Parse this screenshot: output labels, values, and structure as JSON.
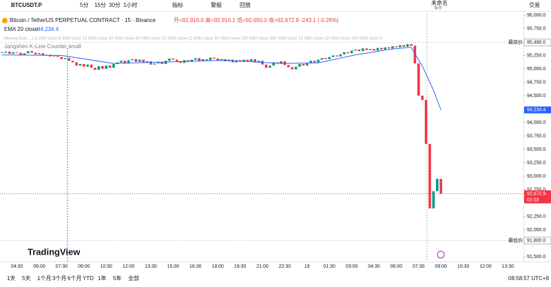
{
  "toolbar": {
    "symbol": "BTCUSDT.P",
    "intervals": [
      "5分",
      "15分",
      "30分",
      "1小时"
    ],
    "indicators": "指标",
    "alert": "警报",
    "replay": "回放",
    "layout_name": "未命名",
    "layout_status": "保存",
    "trade": "交易"
  },
  "legend": {
    "title": "Bitcoin / TetherUS PERPETUAL CONTRACT · 15 · Binance",
    "ohlc": "开=92,916.0 高=92,916.1 低=92,650.0 收=92,672.9 -243.1 (-0.26%)",
    "ema_name": "EMA 20 close",
    "ema_value": "94,234.4",
    "moving_avg": "Moving Aver... 1.5 LMA close 8 SMA close 13 SMA close 20 SMA close 60 SMA close 10 SMA close 21 EMA close 50 SMA close 200 SMA close 300 SMA close 10 SMA close 10 SMA close 100 SMA close 6",
    "counter": "Jangshen K-Line Counter small"
  },
  "chart": {
    "ylim": [
      96282,
      91410
    ],
    "price_ticks": [
      {
        "value": 96000,
        "label": "96,000.0"
      },
      {
        "value": 95750,
        "label": "95,750.0"
      },
      {
        "value": 95250,
        "label": "95,250.0"
      },
      {
        "value": 95000,
        "label": "95,000.0"
      },
      {
        "value": 94750,
        "label": "94,750.0"
      },
      {
        "value": 94500,
        "label": "94,500.0"
      },
      {
        "value": 94000,
        "label": "94,000.0"
      },
      {
        "value": 93750,
        "label": "93,750.0"
      },
      {
        "value": 93500,
        "label": "93,500.0"
      },
      {
        "value": 93250,
        "label": "93,250.0"
      },
      {
        "value": 93000,
        "label": "93,000.0"
      },
      {
        "value": 92750,
        "label": "92,750.0"
      },
      {
        "value": 92250,
        "label": "92,250.0"
      },
      {
        "value": 92000,
        "label": "92,000.0"
      },
      {
        "value": 91500,
        "label": "91,500.0"
      }
    ],
    "high_marker": {
      "name": "最高价",
      "value": 95490,
      "label": "95,490.0"
    },
    "low_marker": {
      "name": "最低价",
      "value": 91800,
      "label": "91,800.0"
    },
    "ema_marker": {
      "value": 94234.4,
      "label": "94,234.4"
    },
    "last_price": {
      "value": 92672.9,
      "label": "92,672.9",
      "countdown": "01:03"
    },
    "time_labels": [
      "04:30",
      "06:00",
      "07:30",
      "09:00",
      "10:30",
      "12:00",
      "13:30",
      "15:00",
      "16:30",
      "18:00",
      "19:30",
      "21:00",
      "22:30",
      "19",
      "01:30",
      "03:00",
      "04:30",
      "06:00",
      "07:30",
      "09:00",
      "10:30",
      "12:00",
      "13:30"
    ],
    "closes": [
      95300,
      95320,
      95280,
      95310,
      95300,
      95260,
      95290,
      95330,
      95300,
      95270,
      95290,
      95250,
      95260,
      95230,
      95240,
      95220,
      95180,
      95200,
      95150,
      95120,
      95060,
      95090,
      95040,
      95080,
      95020,
      94980,
      95050,
      95000,
      95060,
      95020,
      95090,
      95120,
      95150,
      95100,
      95160,
      95180,
      95130,
      95170,
      95110,
      95140,
      95080,
      95100,
      95130,
      95090,
      95150,
      95190,
      95170,
      95140,
      95110,
      95160,
      95130,
      95170,
      95200,
      95140,
      95180,
      95160,
      95210,
      95190,
      95150,
      95180,
      95140,
      95170,
      95120,
      95160,
      95130,
      95170,
      95140,
      95180,
      95120,
      95150,
      95080,
      95020,
      95060,
      95120,
      95100,
      95140,
      95070,
      95030,
      94990,
      95040,
      95090,
      95060,
      95110,
      95150,
      95120,
      95170,
      95200,
      95180,
      95220,
      95250,
      95230,
      95270,
      95310,
      95290,
      95340,
      95360,
      95330,
      95380,
      95350,
      95370,
      95340,
      95390,
      95360,
      95400,
      95380,
      95420,
      95400,
      95440,
      95410,
      95460,
      95430,
      95100,
      94500,
      94420,
      93600,
      92400,
      92720,
      92950,
      92672.9
    ],
    "ema": {
      "index": [
        0,
        16,
        30,
        45,
        60,
        75,
        85,
        95,
        105,
        110,
        113,
        116,
        118
      ],
      "values": [
        95260,
        95250,
        95100,
        95130,
        95160,
        95100,
        95110,
        95260,
        95370,
        95400,
        95050,
        94600,
        94234.4
      ]
    }
  },
  "footer": {
    "ranges": [
      "1天",
      "5天",
      "1个月",
      "3个月",
      "6个月",
      "YTD",
      "1年",
      "5年",
      "全部"
    ],
    "clock": "08:58:57 UTC+8",
    "brand": "TradingView"
  }
}
